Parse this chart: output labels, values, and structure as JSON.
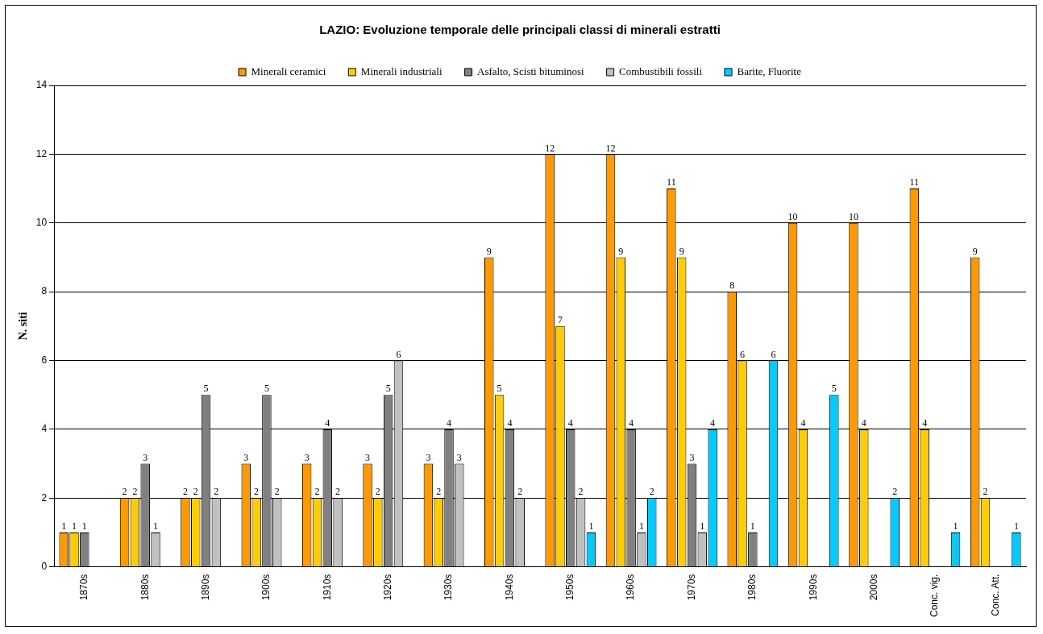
{
  "chart_data": {
    "type": "bar",
    "title": "LAZIO: Evoluzione temporale delle principali classi di minerali estratti",
    "ylabel": "N. siti",
    "categories": [
      "1870s",
      "1880s",
      "1890s",
      "1900s",
      "1910s",
      "1920s",
      "1930s",
      "1940s",
      "1950s",
      "1960s",
      "1970s",
      "1980s",
      "1990s",
      "2000s",
      "Conc. vig.",
      "Conc. Att."
    ],
    "series": [
      {
        "name": "Minerali ceramici",
        "color": "#ff9900",
        "values": [
          1,
          2,
          2,
          3,
          3,
          3,
          3,
          9,
          12,
          12,
          11,
          8,
          10,
          10,
          11,
          9
        ]
      },
      {
        "name": "Minerali industriali",
        "color": "#ffcc00",
        "values": [
          1,
          2,
          2,
          2,
          2,
          2,
          2,
          5,
          7,
          9,
          9,
          6,
          4,
          4,
          4,
          2
        ]
      },
      {
        "name": "Asfalto, Scisti bituminosi",
        "color": "#808080",
        "values": [
          1,
          3,
          5,
          5,
          4,
          5,
          4,
          4,
          4,
          4,
          3,
          1,
          null,
          null,
          null,
          null
        ]
      },
      {
        "name": "Combustibili fossili",
        "color": "#c0c0c0",
        "values": [
          null,
          1,
          2,
          2,
          2,
          6,
          3,
          2,
          2,
          1,
          1,
          null,
          null,
          null,
          null,
          null
        ]
      },
      {
        "name": "Barite, Fluorite",
        "color": "#00ccff",
        "values": [
          null,
          null,
          null,
          null,
          null,
          null,
          null,
          null,
          1,
          2,
          4,
          6,
          5,
          2,
          1,
          1
        ]
      }
    ],
    "ylim": [
      0,
      14
    ],
    "yticks": [
      0,
      2,
      4,
      6,
      8,
      10,
      12,
      14
    ],
    "grid": "y",
    "legend": "top",
    "data_labels": true
  }
}
